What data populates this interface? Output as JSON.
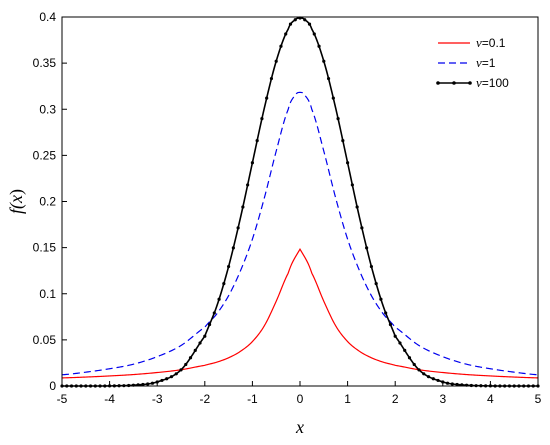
{
  "chart_data": {
    "type": "line",
    "xlabel": "x",
    "ylabel_parts": [
      "f(",
      "x",
      ")"
    ],
    "xlim": [
      -5,
      5
    ],
    "ylim": [
      0,
      0.4
    ],
    "xticks": [
      "-5",
      "-4",
      "-3",
      "-2",
      "-1",
      "0",
      "1",
      "2",
      "3",
      "4",
      "5"
    ],
    "yticks": [
      "0",
      "0.05",
      "0.1",
      "0.15",
      "0.2",
      "0.25",
      "0.3",
      "0.35",
      "0.4"
    ],
    "grid": false,
    "legend_position": "top-right",
    "x": [
      -5,
      -4.5,
      -4,
      -3.5,
      -3,
      -2.5,
      -2,
      -1.75,
      -1.5,
      -1.25,
      -1,
      -0.75,
      -0.5,
      -0.25,
      -0.1,
      0,
      0.1,
      0.25,
      0.5,
      0.75,
      1,
      1.25,
      1.5,
      1.75,
      2,
      2.5,
      3,
      3.5,
      4,
      4.5,
      5
    ],
    "series": [
      {
        "name": "ν=0.1",
        "legend_symbol": "ν",
        "legend_value": "=0.1",
        "color": "#ff0000",
        "style": "solid",
        "markers": false,
        "values": [
          0.0088,
          0.0097,
          0.0109,
          0.0124,
          0.0146,
          0.0176,
          0.0224,
          0.0258,
          0.0306,
          0.0376,
          0.0482,
          0.0652,
          0.0919,
          0.1221,
          0.1396,
          0.1483,
          0.1396,
          0.1221,
          0.0919,
          0.0652,
          0.0482,
          0.0376,
          0.0306,
          0.0258,
          0.0224,
          0.0176,
          0.0146,
          0.0124,
          0.0109,
          0.0097,
          0.0088
        ]
      },
      {
        "name": "ν=1",
        "legend_symbol": "ν",
        "legend_value": "=1",
        "color": "#0000ee",
        "style": "dashed",
        "markers": false,
        "values": [
          0.0122,
          0.015,
          0.0187,
          0.0236,
          0.0318,
          0.0439,
          0.0637,
          0.0781,
          0.0979,
          0.125,
          0.1592,
          0.2037,
          0.2546,
          0.2996,
          0.3152,
          0.3183,
          0.3152,
          0.2996,
          0.2546,
          0.2037,
          0.1592,
          0.125,
          0.0979,
          0.0781,
          0.0637,
          0.0439,
          0.0318,
          0.0236,
          0.0187,
          0.015,
          0.0122
        ]
      },
      {
        "name": "ν=100",
        "legend_symbol": "ν",
        "legend_value": "=100",
        "color": "#000000",
        "style": "solid",
        "markers": true,
        "values": [
          0.0,
          0.0,
          0.0001,
          0.0009,
          0.0044,
          0.0175,
          0.054,
          0.0863,
          0.1295,
          0.1826,
          0.242,
          0.3011,
          0.3521,
          0.3867,
          0.397,
          0.3989,
          0.397,
          0.3867,
          0.3521,
          0.3011,
          0.242,
          0.1826,
          0.1295,
          0.0863,
          0.054,
          0.0175,
          0.0044,
          0.0009,
          0.0001,
          0.0,
          0.0
        ]
      }
    ]
  }
}
